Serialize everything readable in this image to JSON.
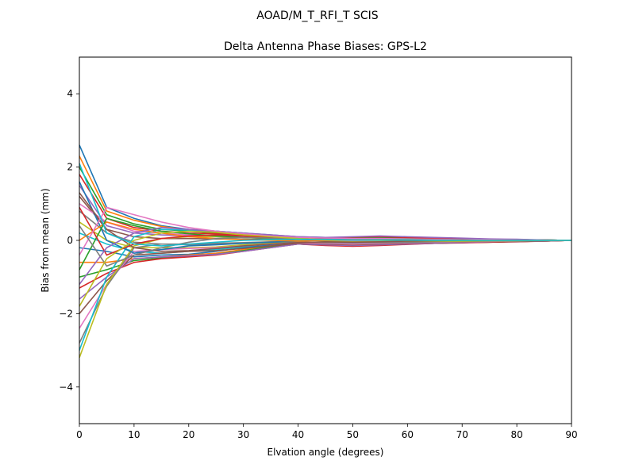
{
  "figure": {
    "suptitle": "AOAD/M_T_RFI_T  SCIS"
  },
  "chart_data": {
    "type": "line",
    "title": "Delta Antenna Phase Biases: GPS-L2",
    "xlabel": "Elvation angle (degrees)",
    "ylabel": "Bias from mean (mm)",
    "xlim": [
      0,
      90
    ],
    "ylim": [
      -5,
      5
    ],
    "xticks": [
      0,
      10,
      20,
      30,
      40,
      50,
      60,
      70,
      80,
      90
    ],
    "yticks": [
      -4,
      -2,
      0,
      2,
      4
    ],
    "ytick_labels": [
      "−4",
      "−2",
      "0",
      "2",
      "4"
    ],
    "grid": false,
    "legend": "none",
    "colors": [
      "#1f77b4",
      "#ff7f0e",
      "#2ca02c",
      "#d62728",
      "#9467bd",
      "#8c564b",
      "#e377c2",
      "#7f7f7f",
      "#bcbd22",
      "#17becf"
    ],
    "x": [
      0,
      5,
      10,
      15,
      20,
      25,
      30,
      35,
      40,
      45,
      50,
      55,
      60,
      65,
      70,
      75,
      80,
      85,
      90
    ],
    "series": [
      {
        "values": [
          2.6,
          0.9,
          0.6,
          0.4,
          0.3,
          0.25,
          0.2,
          0.15,
          0.1,
          0.08,
          0.07,
          0.06,
          0.05,
          0.04,
          0.03,
          0.02,
          0.02,
          0.01,
          0
        ]
      },
      {
        "values": [
          2.3,
          0.8,
          0.55,
          0.38,
          0.28,
          0.22,
          0.18,
          0.12,
          0.09,
          0.07,
          0.06,
          0.05,
          0.05,
          0.04,
          0.03,
          0.02,
          0.02,
          0.01,
          0
        ]
      },
      {
        "values": [
          2.0,
          0.7,
          0.45,
          0.3,
          0.25,
          0.2,
          0.15,
          0.1,
          0.08,
          0.06,
          0.05,
          0.04,
          0.04,
          0.03,
          0.02,
          0.02,
          0.01,
          0.01,
          0
        ]
      },
      {
        "values": [
          1.8,
          0.6,
          0.35,
          0.25,
          0.2,
          0.18,
          0.12,
          0.08,
          0.05,
          0.04,
          0.04,
          0.03,
          0.03,
          0.02,
          0.02,
          0.01,
          0.01,
          0.0,
          0
        ]
      },
      {
        "values": [
          1.5,
          0.4,
          0.2,
          0.15,
          0.12,
          0.1,
          0.08,
          0.05,
          0.03,
          0.03,
          0.03,
          0.02,
          0.02,
          0.02,
          0.01,
          0.01,
          0.01,
          0.0,
          0
        ]
      },
      {
        "values": [
          1.2,
          0.3,
          0.1,
          0.05,
          0.05,
          0.04,
          0.03,
          0.02,
          0.0,
          0.01,
          0.02,
          0.02,
          0.02,
          0.01,
          0.01,
          0.01,
          0.0,
          0.0,
          0
        ]
      },
      {
        "values": [
          1.0,
          0.5,
          0.25,
          0.2,
          0.15,
          0.12,
          0.1,
          0.06,
          0.02,
          0.0,
          -0.01,
          0.0,
          0.01,
          0.01,
          0.0,
          0.0,
          0.0,
          0.0,
          0
        ]
      },
      {
        "values": [
          0.8,
          0.2,
          -0.05,
          -0.1,
          -0.12,
          -0.1,
          -0.08,
          -0.05,
          -0.05,
          -0.06,
          -0.06,
          -0.05,
          -0.04,
          -0.03,
          -0.02,
          -0.02,
          -0.01,
          -0.01,
          0
        ]
      },
      {
        "values": [
          0.5,
          0.0,
          -0.2,
          -0.2,
          -0.2,
          -0.18,
          -0.12,
          -0.08,
          -0.06,
          -0.07,
          -0.08,
          -0.07,
          -0.05,
          -0.04,
          -0.03,
          -0.02,
          -0.01,
          -0.01,
          0
        ]
      },
      {
        "values": [
          0.2,
          -0.1,
          -0.3,
          -0.35,
          -0.3,
          -0.25,
          -0.18,
          -0.1,
          -0.07,
          -0.08,
          -0.1,
          -0.08,
          -0.06,
          -0.05,
          -0.04,
          -0.03,
          -0.02,
          -0.01,
          0
        ]
      },
      {
        "values": [
          -0.2,
          -0.3,
          -0.45,
          -0.4,
          -0.38,
          -0.3,
          -0.2,
          -0.12,
          -0.08,
          -0.1,
          -0.12,
          -0.1,
          -0.08,
          -0.06,
          -0.05,
          -0.04,
          -0.03,
          -0.01,
          0
        ]
      },
      {
        "values": [
          -0.6,
          -0.6,
          -0.5,
          -0.45,
          -0.4,
          -0.35,
          -0.25,
          -0.15,
          -0.1,
          -0.12,
          -0.14,
          -0.12,
          -0.09,
          -0.07,
          -0.06,
          -0.05,
          -0.03,
          -0.02,
          0
        ]
      },
      {
        "values": [
          -1.0,
          -0.8,
          -0.55,
          -0.48,
          -0.42,
          -0.38,
          -0.28,
          -0.18,
          -0.1,
          -0.13,
          -0.15,
          -0.13,
          -0.1,
          -0.08,
          -0.06,
          -0.05,
          -0.03,
          -0.02,
          0
        ]
      },
      {
        "values": [
          -1.3,
          -0.9,
          -0.6,
          -0.5,
          -0.45,
          -0.4,
          -0.3,
          -0.2,
          -0.1,
          -0.14,
          -0.16,
          -0.14,
          -0.11,
          -0.08,
          -0.07,
          -0.05,
          -0.04,
          -0.02,
          0
        ]
      },
      {
        "values": [
          -1.6,
          -1.0,
          -0.5,
          -0.45,
          -0.42,
          -0.38,
          -0.3,
          -0.2,
          -0.1,
          -0.12,
          -0.14,
          -0.12,
          -0.1,
          -0.08,
          -0.06,
          -0.04,
          -0.03,
          -0.02,
          0
        ]
      },
      {
        "values": [
          -2.0,
          -1.1,
          -0.4,
          -0.35,
          -0.3,
          -0.28,
          -0.22,
          -0.15,
          -0.08,
          -0.1,
          -0.12,
          -0.1,
          -0.08,
          -0.06,
          -0.05,
          -0.04,
          -0.03,
          -0.02,
          0
        ]
      },
      {
        "values": [
          -2.4,
          -1.2,
          -0.3,
          -0.25,
          -0.22,
          -0.2,
          -0.15,
          -0.1,
          -0.06,
          -0.08,
          -0.1,
          -0.08,
          -0.06,
          -0.05,
          -0.04,
          -0.03,
          -0.02,
          -0.01,
          0
        ]
      },
      {
        "values": [
          -2.8,
          -1.25,
          -0.2,
          -0.1,
          -0.1,
          -0.08,
          -0.06,
          -0.04,
          -0.04,
          -0.06,
          -0.07,
          -0.06,
          -0.05,
          -0.04,
          -0.03,
          -0.02,
          -0.02,
          -0.01,
          0
        ]
      },
      {
        "values": [
          -3.2,
          -1.2,
          -0.15,
          0.05,
          0.1,
          0.1,
          0.08,
          0.05,
          0.02,
          -0.02,
          -0.04,
          -0.03,
          -0.02,
          -0.02,
          -0.02,
          -0.01,
          -0.01,
          0.0,
          0
        ]
      },
      {
        "values": [
          -3.0,
          -1.0,
          0.1,
          0.3,
          0.28,
          0.25,
          0.2,
          0.12,
          0.06,
          0.04,
          0.05,
          0.05,
          0.04,
          0.03,
          0.02,
          0.02,
          0.01,
          0.0,
          0
        ]
      },
      {
        "values": [
          1.6,
          0.0,
          -0.35,
          -0.25,
          -0.15,
          -0.12,
          -0.08,
          -0.05,
          -0.02,
          0.02,
          0.05,
          0.06,
          0.05,
          0.04,
          0.03,
          0.02,
          0.01,
          0.01,
          0
        ]
      },
      {
        "values": [
          0.0,
          0.5,
          0.3,
          0.2,
          0.1,
          0.05,
          0.02,
          0.0,
          -0.02,
          0.0,
          0.02,
          0.03,
          0.03,
          0.02,
          0.02,
          0.01,
          0.01,
          0.0,
          0
        ]
      },
      {
        "values": [
          -0.8,
          0.6,
          0.4,
          0.25,
          0.18,
          0.12,
          0.08,
          0.05,
          0.03,
          0.05,
          0.08,
          0.08,
          0.06,
          0.05,
          0.04,
          0.03,
          0.02,
          0.01,
          0
        ]
      },
      {
        "values": [
          0.9,
          -0.4,
          -0.1,
          0.05,
          0.12,
          0.15,
          0.12,
          0.08,
          0.04,
          0.06,
          0.09,
          0.1,
          0.08,
          0.06,
          0.05,
          0.03,
          0.02,
          0.01,
          0
        ]
      },
      {
        "values": [
          -1.2,
          -0.2,
          0.2,
          0.35,
          0.3,
          0.25,
          0.2,
          0.15,
          0.1,
          0.08,
          0.1,
          0.12,
          0.1,
          0.08,
          0.06,
          0.04,
          0.03,
          0.01,
          0
        ]
      },
      {
        "values": [
          1.3,
          0.3,
          -0.2,
          -0.3,
          -0.28,
          -0.22,
          -0.15,
          -0.1,
          -0.06,
          -0.04,
          -0.05,
          -0.04,
          -0.02,
          -0.01,
          0.0,
          0.0,
          0.0,
          0.0,
          0
        ]
      },
      {
        "values": [
          -0.4,
          0.9,
          0.7,
          0.5,
          0.35,
          0.25,
          0.18,
          0.12,
          0.08,
          0.06,
          0.05,
          0.05,
          0.04,
          0.03,
          0.02,
          0.02,
          0.01,
          0.0,
          0
        ]
      },
      {
        "values": [
          0.4,
          -0.7,
          -0.4,
          -0.2,
          -0.05,
          0.05,
          0.08,
          0.06,
          0.04,
          0.03,
          0.02,
          0.02,
          0.02,
          0.01,
          0.01,
          0.0,
          0.0,
          0.0,
          0
        ]
      },
      {
        "values": [
          -1.8,
          -0.5,
          0.0,
          0.2,
          0.25,
          0.22,
          0.15,
          0.1,
          0.05,
          0.02,
          0.01,
          0.01,
          0.01,
          0.0,
          0.0,
          0.0,
          0.0,
          0.0,
          0
        ]
      },
      {
        "values": [
          2.1,
          0.2,
          -0.1,
          -0.15,
          -0.1,
          -0.05,
          0.0,
          0.02,
          0.03,
          0.02,
          0.01,
          0.01,
          0.01,
          0.0,
          0.0,
          0.0,
          0.0,
          0.0,
          0
        ]
      }
    ]
  }
}
